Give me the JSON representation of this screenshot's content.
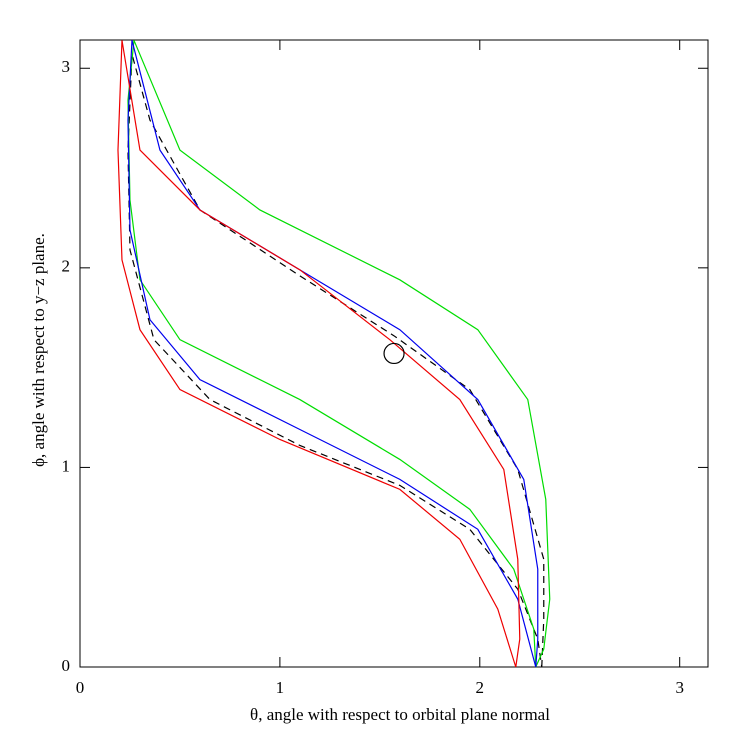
{
  "chart_data": {
    "type": "line",
    "xlabel": "θ, angle with respect to orbital plane normal",
    "ylabel": "ϕ, angle with respect to y−z plane.",
    "xlim": [
      0,
      3.1416
    ],
    "ylim": [
      0,
      3.1416
    ],
    "xticks": [
      0,
      1,
      2,
      3
    ],
    "yticks": [
      0,
      1,
      2,
      3
    ],
    "series": [
      {
        "color": "#000000",
        "dashed": true,
        "x": [
          2.31,
          2.32,
          2.32,
          2.19,
          1.95,
          1.57,
          1.1,
          0.6,
          0.35,
          0.26,
          0.24,
          0.25,
          0.37,
          0.65,
          1.1,
          1.6,
          1.95,
          2.19,
          2.29,
          2.31
        ],
        "y": [
          0,
          0.24,
          0.54,
          0.99,
          1.39,
          1.66,
          1.96,
          2.29,
          2.74,
          3.07,
          2.59,
          2.09,
          1.64,
          1.34,
          1.11,
          0.91,
          0.69,
          0.39,
          0.14,
          0
        ]
      },
      {
        "color": "#00dd00",
        "dashed": false,
        "x": [
          2.28,
          2.32,
          2.35,
          2.33,
          2.24,
          1.99,
          1.6,
          0.9,
          0.5,
          0.27,
          0.24,
          0.25,
          0.3,
          0.5,
          1.1,
          1.6,
          1.95,
          2.17,
          2.27,
          2.28
        ],
        "y": [
          0,
          0.09,
          0.34,
          0.84,
          1.34,
          1.69,
          1.94,
          2.29,
          2.59,
          3.14,
          2.84,
          2.34,
          1.94,
          1.64,
          1.34,
          1.04,
          0.79,
          0.49,
          0.19,
          0
        ]
      },
      {
        "color": "#0000ee",
        "dashed": false,
        "x": [
          2.28,
          2.29,
          2.29,
          2.22,
          1.99,
          1.6,
          1.1,
          0.6,
          0.4,
          0.26,
          0.24,
          0.25,
          0.35,
          0.6,
          1.1,
          1.6,
          1.99,
          2.19,
          2.28
        ],
        "y": [
          0,
          0.14,
          0.49,
          0.94,
          1.34,
          1.69,
          1.99,
          2.29,
          2.59,
          3.14,
          2.74,
          2.19,
          1.74,
          1.44,
          1.19,
          0.94,
          0.69,
          0.34,
          0
        ]
      },
      {
        "color": "#ee0000",
        "dashed": false,
        "x": [
          2.18,
          2.2,
          2.19,
          2.12,
          1.9,
          1.55,
          1.1,
          0.6,
          0.3,
          0.21,
          0.19,
          0.21,
          0.3,
          0.5,
          1.0,
          1.6,
          1.9,
          2.09,
          2.18
        ],
        "y": [
          0,
          0.14,
          0.54,
          0.99,
          1.34,
          1.64,
          1.99,
          2.29,
          2.59,
          3.14,
          2.59,
          2.04,
          1.69,
          1.39,
          1.14,
          0.89,
          0.64,
          0.29,
          0
        ]
      }
    ],
    "marker": {
      "x": 1.571,
      "y": 1.571
    }
  }
}
